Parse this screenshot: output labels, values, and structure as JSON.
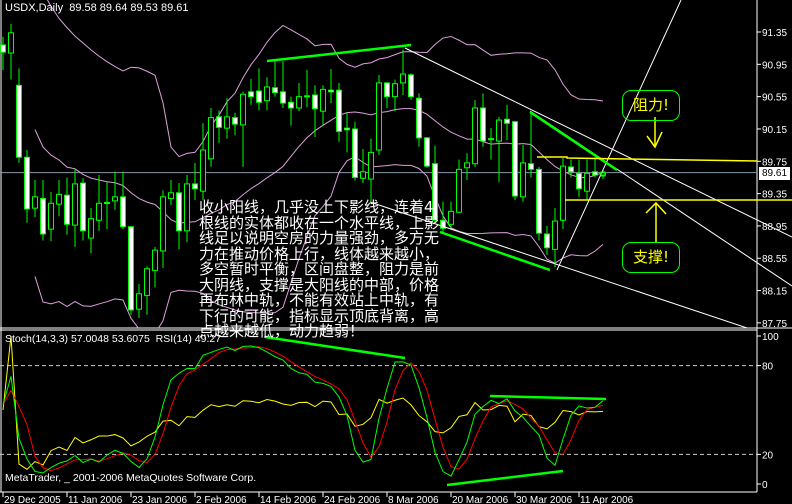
{
  "header": {
    "symbol": "USDX,Daily",
    "open": "89.58",
    "high": "89.64",
    "low": "89.53",
    "close": "89.61"
  },
  "indicator_header": {
    "stoch_label": "Stoch(14,3,3)",
    "stoch_main": "57.0048",
    "stoch_signal": "53.6075",
    "rsi_label": "RSI(14)",
    "rsi_value": "49.27"
  },
  "footer": "MetaTrader, _ 2001-2006 MetaQuotes Software Corp.",
  "last_price": "89.61",
  "annotations": {
    "note": "收小阳线，几乎没上下影线，连着4根线的实体都收在一个水平线，上影线足以说明空房的力量强劲，多方无力在推动价格上行，线体越来越小，多空暂时平衡，区间盘整，阻力是前大阴线，支撑是大阳线的中部，价格再布林中轨，不能有效站上中轨，有下行的可能，指标显示顶底背离，高点越来越低，动力趋弱！",
    "resistance": "阻力!",
    "support": "支撑!"
  },
  "colors": {
    "background": "#000000",
    "candle": "#00ff00",
    "bear_body": "#ffffff",
    "bands": "#dda0dd",
    "stoch_main": "#00ff00",
    "stoch_signal": "#ff0000",
    "rsi": "#ffff00",
    "trendline": "#ffffff",
    "level": "#ffff00",
    "price_line": "#8899aa"
  },
  "chart_data": {
    "type": "candlestick",
    "timeframe": "Daily",
    "x_tick_labels": [
      "29 Dec 2005",
      "11 Jan 2006",
      "23 Jan 2006",
      "2 Feb 2006",
      "14 Feb 2006",
      "24 Feb 2006",
      "8 Mar 2006",
      "20 Mar 2006",
      "30 Mar 2006",
      "11 Apr 2006"
    ],
    "y_ticks": [
      "91.35",
      "90.95",
      "90.55",
      "90.15",
      "89.75",
      "89.35",
      "88.95",
      "88.55",
      "88.15",
      "87.75"
    ],
    "ylim": [
      87.67,
      91.74
    ],
    "indicator_ticks": [
      "100",
      "80",
      "20",
      "0"
    ],
    "indicator_levels": [
      80,
      20
    ],
    "overlays": [
      "Bollinger Bands (20,2)"
    ],
    "ohlc": [
      [
        91.19,
        91.29,
        90.88,
        91.1
      ],
      [
        91.09,
        91.45,
        90.76,
        91.34
      ],
      [
        90.69,
        90.9,
        89.73,
        89.8
      ],
      [
        89.8,
        89.89,
        88.99,
        89.16
      ],
      [
        89.17,
        89.52,
        89.06,
        89.31
      ],
      [
        89.29,
        89.52,
        88.77,
        88.85
      ],
      [
        88.91,
        89.37,
        88.76,
        89.23
      ],
      [
        89.22,
        89.52,
        89.07,
        89.34
      ],
      [
        89.33,
        89.55,
        88.84,
        88.97
      ],
      [
        88.96,
        89.65,
        88.69,
        89.47
      ],
      [
        89.48,
        89.54,
        88.77,
        88.89
      ],
      [
        88.8,
        89.17,
        88.61,
        89.04
      ],
      [
        89.02,
        89.58,
        88.89,
        89.23
      ],
      [
        89.24,
        89.49,
        88.91,
        89.23
      ],
      [
        89.26,
        89.62,
        89.15,
        89.31
      ],
      [
        89.31,
        89.62,
        88.91,
        88.94
      ],
      [
        88.94,
        88.95,
        87.85,
        87.91
      ],
      [
        87.92,
        88.23,
        87.81,
        88.11
      ],
      [
        88.09,
        88.45,
        87.85,
        88.42
      ],
      [
        88.4,
        88.69,
        88.19,
        88.65
      ],
      [
        88.64,
        89.39,
        88.43,
        89.31
      ],
      [
        89.29,
        89.52,
        89.21,
        89.36
      ],
      [
        89.36,
        89.48,
        88.66,
        88.89
      ],
      [
        88.89,
        89.58,
        88.75,
        89.47
      ],
      [
        89.47,
        89.73,
        89.27,
        89.41
      ],
      [
        89.38,
        90.22,
        89.27,
        89.89
      ],
      [
        89.78,
        90.41,
        89.68,
        90.29
      ],
      [
        90.3,
        90.38,
        89.98,
        90.17
      ],
      [
        90.16,
        90.53,
        90.03,
        90.3
      ],
      [
        90.29,
        90.35,
        90.07,
        90.21
      ],
      [
        90.2,
        90.61,
        89.68,
        90.58
      ],
      [
        90.61,
        90.77,
        90.45,
        90.55
      ],
      [
        90.62,
        90.9,
        90.38,
        90.48
      ],
      [
        90.5,
        90.79,
        90.38,
        90.67
      ],
      [
        90.66,
        91.0,
        90.55,
        90.6
      ],
      [
        90.61,
        90.99,
        90.41,
        90.47
      ],
      [
        90.48,
        90.55,
        90.19,
        90.41
      ],
      [
        90.41,
        90.72,
        90.37,
        90.55
      ],
      [
        90.56,
        90.88,
        90.42,
        90.56
      ],
      [
        90.57,
        90.69,
        90.05,
        90.4
      ],
      [
        90.37,
        90.69,
        90.19,
        90.64
      ],
      [
        90.63,
        90.89,
        90.47,
        90.61
      ],
      [
        90.63,
        90.72,
        89.99,
        90.12
      ],
      [
        90.16,
        90.35,
        89.86,
        90.14
      ],
      [
        90.15,
        90.24,
        89.51,
        89.55
      ],
      [
        89.54,
        89.9,
        89.48,
        89.62
      ],
      [
        89.53,
        90.03,
        89.25,
        89.86
      ],
      [
        89.89,
        90.82,
        89.83,
        90.72
      ],
      [
        90.72,
        90.73,
        90.41,
        90.55
      ],
      [
        90.55,
        90.76,
        90.37,
        90.71
      ],
      [
        90.72,
        91.13,
        90.57,
        90.83
      ],
      [
        90.82,
        90.84,
        90.51,
        90.55
      ],
      [
        90.53,
        90.59,
        89.93,
        90.04
      ],
      [
        90.04,
        90.05,
        89.67,
        89.69
      ],
      [
        89.72,
        89.94,
        88.99,
        89.02
      ],
      [
        89.02,
        89.25,
        88.86,
        88.92
      ],
      [
        88.97,
        89.25,
        88.9,
        89.13
      ],
      [
        89.12,
        89.77,
        89.11,
        89.65
      ],
      [
        89.67,
        89.85,
        89.52,
        89.73
      ],
      [
        89.72,
        90.51,
        89.68,
        90.41
      ],
      [
        90.41,
        90.59,
        89.93,
        90.0
      ],
      [
        90.03,
        90.16,
        89.77,
        90.02
      ],
      [
        90.0,
        90.3,
        89.49,
        90.26
      ],
      [
        90.27,
        90.45,
        90.01,
        90.22
      ],
      [
        90.24,
        90.25,
        89.27,
        89.32
      ],
      [
        89.31,
        89.95,
        89.25,
        89.73
      ],
      [
        89.72,
        90.36,
        89.55,
        89.65
      ],
      [
        89.65,
        89.68,
        88.77,
        88.86
      ],
      [
        88.85,
        88.95,
        88.59,
        88.68
      ],
      [
        88.66,
        89.17,
        88.44,
        89.01
      ],
      [
        89.02,
        89.79,
        88.91,
        89.69
      ],
      [
        89.68,
        89.77,
        89.55,
        89.62
      ],
      [
        89.6,
        89.77,
        89.31,
        89.41
      ],
      [
        89.38,
        89.77,
        89.27,
        89.6
      ],
      [
        89.62,
        89.8,
        89.55,
        89.58
      ],
      [
        89.58,
        89.64,
        89.53,
        89.61
      ]
    ]
  }
}
